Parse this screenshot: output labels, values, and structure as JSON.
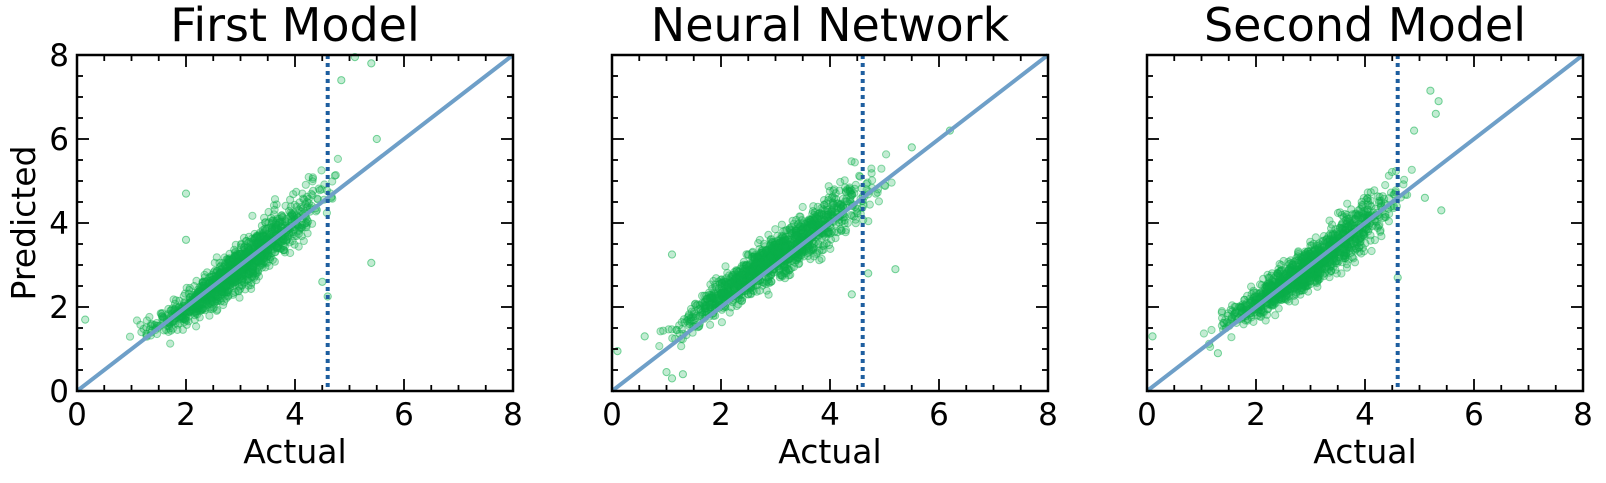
{
  "colors": {
    "points": "#0bb04a",
    "identity_line": "#6e9fc8",
    "threshold_line": "#1f5fa0",
    "frame": "#000000"
  },
  "chart_data": [
    {
      "type": "scatter",
      "title": "First Model",
      "xlabel": "Actual",
      "ylabel": "Predicted",
      "xlim": [
        0,
        8
      ],
      "ylim": [
        0,
        8
      ],
      "xticks": [
        "0",
        "2",
        "4",
        "6",
        "8"
      ],
      "yticks": [
        "0",
        "2",
        "4",
        "6",
        "8"
      ],
      "reference_line": "y = x",
      "vertical_line_x": 4.6,
      "trend": [
        [
          0.9,
          1.5
        ],
        [
          1.5,
          1.55
        ],
        [
          2.0,
          1.95
        ],
        [
          2.5,
          2.45
        ],
        [
          3.0,
          2.95
        ],
        [
          3.5,
          3.5
        ],
        [
          4.0,
          4.0
        ],
        [
          4.5,
          4.6
        ],
        [
          5.0,
          5.2
        ]
      ],
      "outliers": [
        [
          0.15,
          1.7
        ],
        [
          2.0,
          4.7
        ],
        [
          2.0,
          3.6
        ],
        [
          5.4,
          3.05
        ],
        [
          4.6,
          2.25
        ],
        [
          4.85,
          7.4
        ],
        [
          5.4,
          7.8
        ],
        [
          5.1,
          7.95
        ],
        [
          5.5,
          6.0
        ],
        [
          4.5,
          2.6
        ]
      ]
    },
    {
      "type": "scatter",
      "title": "Neural Network",
      "xlabel": "Actual",
      "ylabel": "",
      "xlim": [
        0,
        8
      ],
      "ylim": [
        0,
        8
      ],
      "xticks": [
        "0",
        "2",
        "4",
        "6",
        "8"
      ],
      "yticks": [],
      "reference_line": "y = x",
      "vertical_line_x": 4.6,
      "trend": [
        [
          0.7,
          1.3
        ],
        [
          1.2,
          1.4
        ],
        [
          1.5,
          1.75
        ],
        [
          2.0,
          2.25
        ],
        [
          2.5,
          2.75
        ],
        [
          3.0,
          3.2
        ],
        [
          3.5,
          3.6
        ],
        [
          4.0,
          4.1
        ],
        [
          4.5,
          4.6
        ],
        [
          5.0,
          5.2
        ],
        [
          5.3,
          5.6
        ]
      ],
      "outliers": [
        [
          0.1,
          0.95
        ],
        [
          1.1,
          3.25
        ],
        [
          0.6,
          1.3
        ],
        [
          1.3,
          0.4
        ],
        [
          1.0,
          0.45
        ],
        [
          1.1,
          0.3
        ],
        [
          4.7,
          2.8
        ],
        [
          5.2,
          2.9
        ],
        [
          6.2,
          6.2
        ],
        [
          5.5,
          5.8
        ],
        [
          4.4,
          2.3
        ]
      ]
    },
    {
      "type": "scatter",
      "title": "Second Model",
      "xlabel": "Actual",
      "ylabel": "",
      "xlim": [
        0,
        8
      ],
      "ylim": [
        0,
        8
      ],
      "xticks": [
        "0",
        "2",
        "4",
        "6",
        "8"
      ],
      "yticks": [],
      "reference_line": "y = x",
      "vertical_line_x": 4.6,
      "trend": [
        [
          0.9,
          1.3
        ],
        [
          1.2,
          1.45
        ],
        [
          1.5,
          1.7
        ],
        [
          2.0,
          2.1
        ],
        [
          2.5,
          2.5
        ],
        [
          3.0,
          2.95
        ],
        [
          3.5,
          3.45
        ],
        [
          4.0,
          4.0
        ],
        [
          4.5,
          4.55
        ],
        [
          5.0,
          5.1
        ]
      ],
      "outliers": [
        [
          0.1,
          1.3
        ],
        [
          5.2,
          7.15
        ],
        [
          5.35,
          6.9
        ],
        [
          5.3,
          6.6
        ],
        [
          4.9,
          6.2
        ],
        [
          5.4,
          4.3
        ],
        [
          5.1,
          4.6
        ],
        [
          4.6,
          2.7
        ],
        [
          1.3,
          0.9
        ]
      ]
    }
  ]
}
